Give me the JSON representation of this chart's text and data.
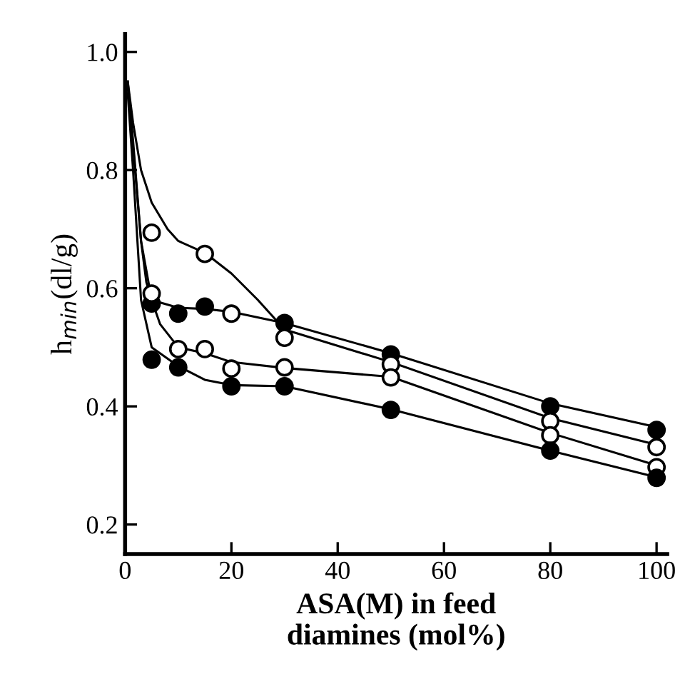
{
  "chart_data": {
    "type": "scatter",
    "xlabel": "ASA(M) in feed\ndiamines (mol%)",
    "ylabel": "h$_{min}$(dl/g)",
    "xlim": [
      0,
      102
    ],
    "ylim": [
      0.15,
      1.03
    ],
    "xticks": [
      0,
      20,
      40,
      60,
      80,
      100
    ],
    "yticks": [
      {
        "value": 0.2,
        "label": "0.2"
      },
      {
        "value": 0.4,
        "label": "0.4"
      },
      {
        "value": 0.6,
        "label": "0.6"
      },
      {
        "value": 0.8,
        "label": "0.8"
      },
      {
        "value": 1.0,
        "label": "1.0"
      }
    ],
    "grid": false,
    "legend": false,
    "series": [
      {
        "marker": "circle",
        "color": "#000000",
        "x": [
          5,
          10,
          15,
          30,
          50,
          80,
          100
        ],
        "values": [
          0.574,
          0.557,
          0.569,
          0.541,
          0.488,
          0.4,
          0.36
        ]
      },
      {
        "marker": "circle",
        "color": "#ffffff",
        "x": [
          5,
          15,
          20,
          30,
          50,
          80,
          100
        ],
        "values": [
          0.694,
          0.658,
          0.557,
          0.516,
          0.471,
          0.375,
          0.331
        ]
      },
      {
        "marker": "circle",
        "color": "#ffffff",
        "x": [
          5,
          10,
          15,
          20,
          30,
          50,
          80,
          100
        ],
        "values": [
          0.591,
          0.497,
          0.497,
          0.464,
          0.466,
          0.449,
          0.351,
          0.297
        ]
      },
      {
        "marker": "circle",
        "color": "#000000",
        "x": [
          5,
          10,
          20,
          30,
          50,
          80,
          100
        ],
        "values": [
          0.479,
          0.466,
          0.434,
          0.434,
          0.394,
          0.325,
          0.279
        ]
      },
      {
        "type": "line",
        "marker": "none",
        "color": "#000000",
        "x": [
          0.5,
          1.5,
          3,
          5,
          8,
          10,
          15,
          20,
          25,
          30,
          50,
          80,
          100
        ],
        "values": [
          0.95,
          0.88,
          0.8,
          0.745,
          0.7,
          0.68,
          0.66,
          0.625,
          0.58,
          0.53,
          0.475,
          0.38,
          0.335
        ]
      },
      {
        "type": "line",
        "marker": "none",
        "color": "#000000",
        "x": [
          0.5,
          1.5,
          3,
          4,
          5,
          10,
          15,
          20,
          30,
          50,
          80,
          100
        ],
        "values": [
          0.95,
          0.85,
          0.68,
          0.61,
          0.58,
          0.567,
          0.565,
          0.56,
          0.541,
          0.49,
          0.405,
          0.365
        ]
      },
      {
        "type": "line",
        "marker": "none",
        "color": "#000000",
        "x": [
          0.5,
          1.5,
          3,
          5,
          6.6,
          10,
          15,
          20,
          30,
          50,
          80,
          100
        ],
        "values": [
          0.94,
          0.84,
          0.68,
          0.58,
          0.539,
          0.5,
          0.49,
          0.475,
          0.465,
          0.45,
          0.355,
          0.3
        ]
      },
      {
        "type": "line",
        "marker": "none",
        "color": "#000000",
        "x": [
          0.5,
          1.5,
          3,
          5,
          10,
          15,
          20,
          30,
          50,
          80,
          100
        ],
        "values": [
          0.93,
          0.8,
          0.58,
          0.5,
          0.468,
          0.445,
          0.436,
          0.434,
          0.395,
          0.325,
          0.28
        ]
      }
    ]
  }
}
